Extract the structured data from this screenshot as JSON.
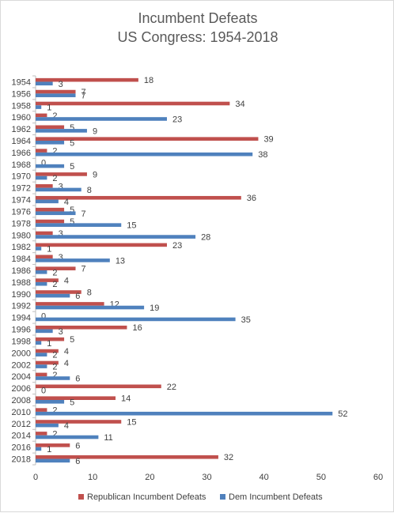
{
  "chart_data": {
    "type": "bar",
    "orientation": "horizontal",
    "title": [
      "Incumbent Defeats",
      "US Congress: 1954-2018"
    ],
    "categories": [
      "1954",
      "1956",
      "1958",
      "1960",
      "1962",
      "1964",
      "1966",
      "1968",
      "1970",
      "1972",
      "1974",
      "1976",
      "1978",
      "1980",
      "1982",
      "1984",
      "1986",
      "1988",
      "1990",
      "1992",
      "1994",
      "1996",
      "1998",
      "2000",
      "2002",
      "2004",
      "2006",
      "2008",
      "2010",
      "2012",
      "2014",
      "2016",
      "2018"
    ],
    "series": [
      {
        "name": "Republican Incumbent Defeats",
        "color": "#c0504d",
        "values": [
          18,
          7,
          34,
          2,
          5,
          39,
          2,
          0,
          9,
          3,
          36,
          5,
          5,
          3,
          23,
          3,
          7,
          4,
          8,
          12,
          0,
          16,
          5,
          4,
          4,
          2,
          22,
          14,
          2,
          15,
          2,
          6,
          32
        ]
      },
      {
        "name": "Dem Incumbent Defeats",
        "color": "#4f81bd",
        "values": [
          3,
          7,
          1,
          23,
          9,
          5,
          38,
          5,
          2,
          8,
          4,
          7,
          15,
          28,
          1,
          13,
          2,
          2,
          6,
          19,
          35,
          3,
          1,
          2,
          2,
          6,
          0,
          5,
          52,
          4,
          11,
          1,
          6
        ]
      }
    ],
    "xlim": [
      0,
      60
    ],
    "xticks": [
      "0",
      "10",
      "20",
      "30",
      "40",
      "50",
      "60"
    ],
    "grid": false,
    "legend_position": "bottom"
  }
}
